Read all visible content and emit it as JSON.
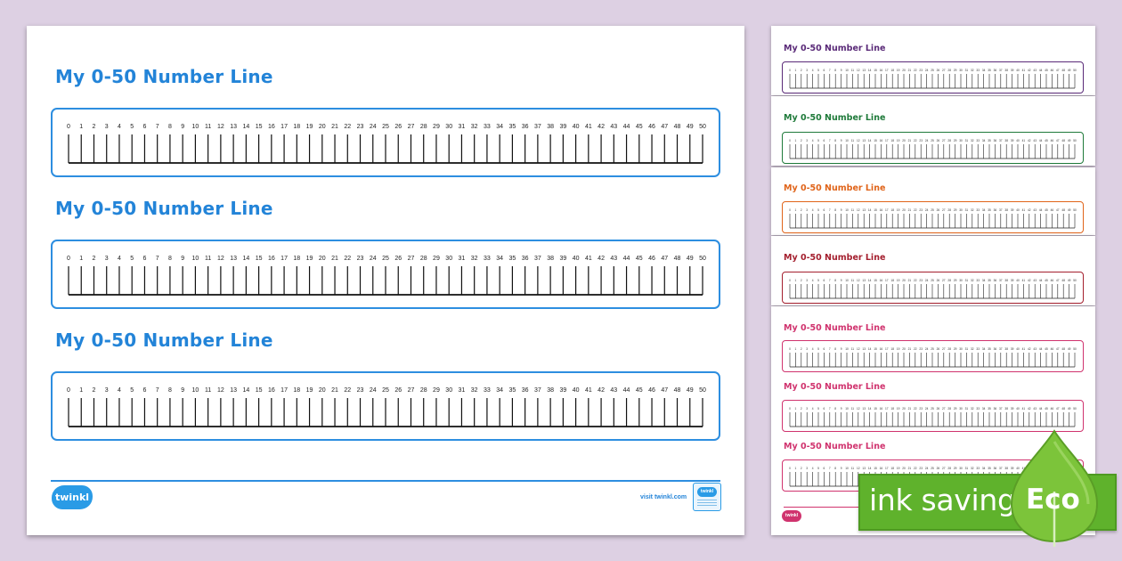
{
  "main_sheet": {
    "title": "My 0-50 Number Line",
    "sections": [
      {
        "title": "My 0-50 Number Line"
      },
      {
        "title": "My 0-50 Number Line"
      },
      {
        "title": "My 0-50 Number Line"
      }
    ],
    "number_line": {
      "start": 0,
      "end": 50,
      "step": 1
    },
    "accent_color": "#2384d8",
    "footer": {
      "logo_text": "twinkl",
      "visit_text": "visit twinkl.com",
      "badge_text": "twinkl"
    }
  },
  "thumbnails": [
    {
      "title": "My 0-50 Number Line",
      "color": "#5a2a78",
      "line_color": "#3a3a3a"
    },
    {
      "title": "My 0-50 Number Line",
      "color": "#1f7a3a",
      "line_color": "#1f7a3a"
    },
    {
      "title": "My 0-50 Number Line",
      "color": "#e0641a",
      "line_color": "#e0641a"
    },
    {
      "title": "My 0-50 Number Line",
      "color": "#a41f2e",
      "line_color": "#a41f2e"
    },
    {
      "title": "My 0-50 Number Line",
      "color": "#d0336e",
      "line_color": "#d0336e"
    },
    {
      "title": "My 0-50 Number Line",
      "color": "#d0336e",
      "line_color": "#d0336e"
    },
    {
      "title": "My 0-50 Number Line",
      "color": "#d0336e",
      "line_color": "#d0336e"
    }
  ],
  "thumb_footer": {
    "logo_text": "twinkl",
    "color": "#d0336e"
  },
  "eco_badge": {
    "label": "ink saving",
    "word": "Eco",
    "color": "#5fb22c",
    "icon": "leaf-icon"
  }
}
